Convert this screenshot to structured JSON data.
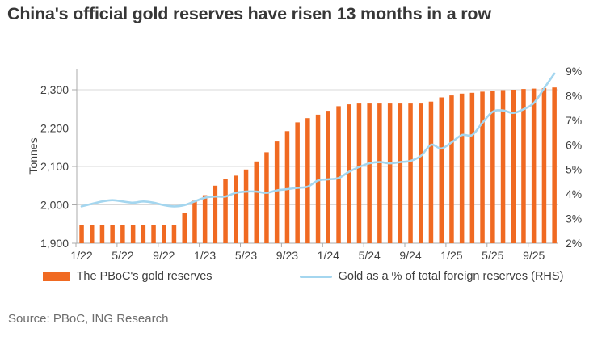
{
  "title": "China's official gold reserves have risen 13 months in a row",
  "source": "Source: PBoC, ING Research",
  "colors": {
    "bar": "#f06a22",
    "line": "#a4d6ef",
    "grid": "#d9d9d9",
    "spine": "#ababab",
    "text": "#3f3f3f"
  },
  "legend": [
    {
      "label": "The PBoC's gold reserves",
      "type": "bar",
      "color": "#f06a22"
    },
    {
      "label": "Gold as a % of total foreign reserves (RHS)",
      "type": "line",
      "color": "#a4d6ef"
    }
  ],
  "chart_data": {
    "type": "bar+line",
    "title": "China's official gold reserves have risen 13 months in a row",
    "x": [
      "1/22",
      "2/22",
      "3/22",
      "4/22",
      "5/22",
      "6/22",
      "7/22",
      "8/22",
      "9/22",
      "10/22",
      "11/22",
      "12/22",
      "1/23",
      "2/23",
      "3/23",
      "4/23",
      "5/23",
      "6/23",
      "7/23",
      "8/23",
      "9/23",
      "10/23",
      "11/23",
      "12/23",
      "1/24",
      "2/24",
      "3/24",
      "4/24",
      "5/24",
      "6/24",
      "7/24",
      "8/24",
      "9/24",
      "10/24",
      "11/24",
      "12/24",
      "1/25",
      "2/25",
      "3/25",
      "4/25",
      "5/25",
      "6/25",
      "7/25",
      "8/25",
      "9/25",
      "10/25",
      "11/25"
    ],
    "x_tick_labels": [
      "1/22",
      "5/22",
      "9/22",
      "1/23",
      "5/23",
      "9/23",
      "1/24",
      "5/24",
      "9/24",
      "1/25",
      "5/25",
      "9/25"
    ],
    "series": [
      {
        "name": "The PBoC's gold reserves",
        "type": "bar",
        "axis": "left",
        "unit": "tonnes",
        "color": "#f06a22",
        "values": [
          1948,
          1948,
          1948,
          1948,
          1948,
          1948,
          1948,
          1948,
          1948,
          1948,
          1980,
          2011,
          2025,
          2050,
          2068,
          2076,
          2092,
          2113,
          2137,
          2165,
          2192,
          2215,
          2226,
          2235,
          2245,
          2257,
          2262,
          2264,
          2264,
          2264,
          2264,
          2264,
          2264,
          2264,
          2269,
          2280,
          2285,
          2290,
          2292,
          2295,
          2296,
          2299,
          2300,
          2302,
          2303,
          2304,
          2306
        ]
      },
      {
        "name": "Gold as a % of total foreign reserves (RHS)",
        "type": "line",
        "axis": "right",
        "unit": "%",
        "color": "#a4d6ef",
        "values": [
          3.5,
          3.6,
          3.7,
          3.75,
          3.7,
          3.65,
          3.7,
          3.65,
          3.55,
          3.5,
          3.55,
          3.7,
          3.85,
          3.9,
          3.9,
          4.05,
          4.1,
          4.1,
          4.05,
          4.15,
          4.2,
          4.25,
          4.3,
          4.55,
          4.6,
          4.65,
          4.9,
          5.1,
          5.25,
          5.3,
          5.25,
          5.3,
          5.35,
          5.55,
          6.0,
          5.85,
          6.1,
          6.4,
          6.4,
          6.9,
          7.35,
          7.4,
          7.3,
          7.45,
          7.7,
          8.3,
          8.9
        ]
      }
    ],
    "y_left": {
      "label": "Tonnes",
      "min": 1900,
      "max": 2355,
      "ticks": [
        1900,
        2000,
        2100,
        2200,
        2300
      ],
      "tick_labels": [
        "1,900",
        "2,000",
        "2,100",
        "2,200",
        "2,300"
      ]
    },
    "y_right": {
      "label": "%",
      "min": 2,
      "max": 9.1,
      "ticks": [
        2,
        3,
        4,
        5,
        6,
        7,
        8,
        9
      ],
      "tick_labels": [
        "2%",
        "3%",
        "4%",
        "5%",
        "6%",
        "7%",
        "8%",
        "9%"
      ]
    },
    "grid": "horizontal",
    "legend_position": "bottom"
  }
}
